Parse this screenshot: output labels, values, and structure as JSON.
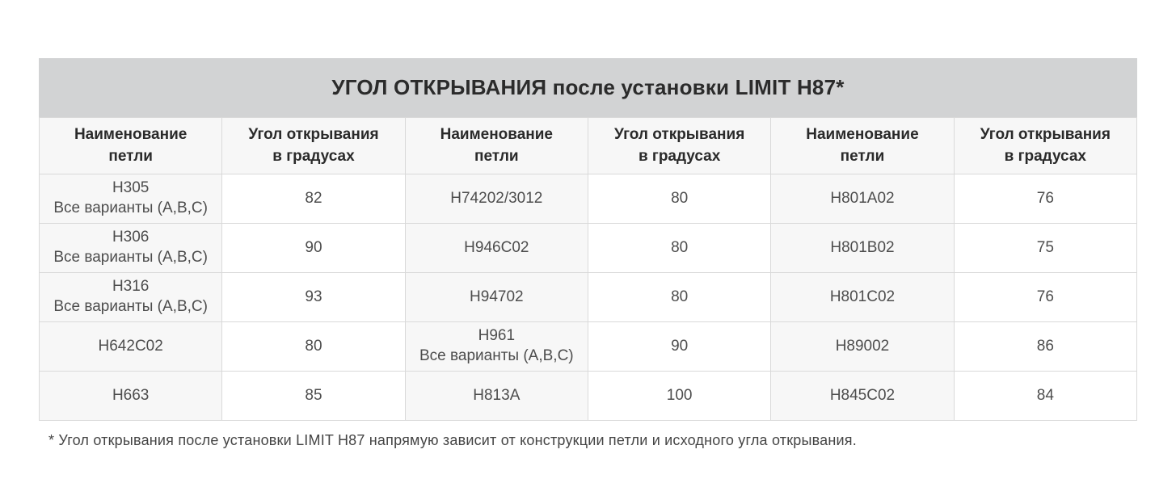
{
  "title": "УГОЛ ОТКРЫВАНИЯ после установки LIMIT H87*",
  "header": [
    "Наименование\nпетли",
    "Угол открывания\nв градусах",
    "Наименование\nпетли",
    "Угол открывания\nв градусах",
    "Наименование\nпетли",
    "Угол открывания\nв градусах"
  ],
  "rows": [
    [
      "H305\nВсе варианты (A,B,C)",
      "82",
      "H74202/3012",
      "80",
      "H801A02",
      "76"
    ],
    [
      "H306\nВсе варианты (A,B,C)",
      "90",
      "H946C02",
      "80",
      "H801B02",
      "75"
    ],
    [
      "H316\nВсе варианты (A,B,C)",
      "93",
      "H94702",
      "80",
      "H801C02",
      "76"
    ],
    [
      "H642C02",
      "80",
      "H961\nВсе варианты (A,B,C)",
      "90",
      "H89002",
      "86"
    ],
    [
      "H663",
      "85",
      "H813A",
      "100",
      "H845C02",
      "84"
    ]
  ],
  "footnote": "* Угол открывания после установки LIMIT H87 напрямую зависит от конструкции петли и исходного угла открывания.",
  "colors": {
    "title_bar_bg": "#d2d3d4",
    "header_bg": "#f7f7f7",
    "name_cell_bg": "#f7f7f7",
    "angle_cell_bg": "#ffffff",
    "border": "#d9d9d9",
    "title_text": "#2b2b2b",
    "cell_text": "#4d4d4d"
  }
}
